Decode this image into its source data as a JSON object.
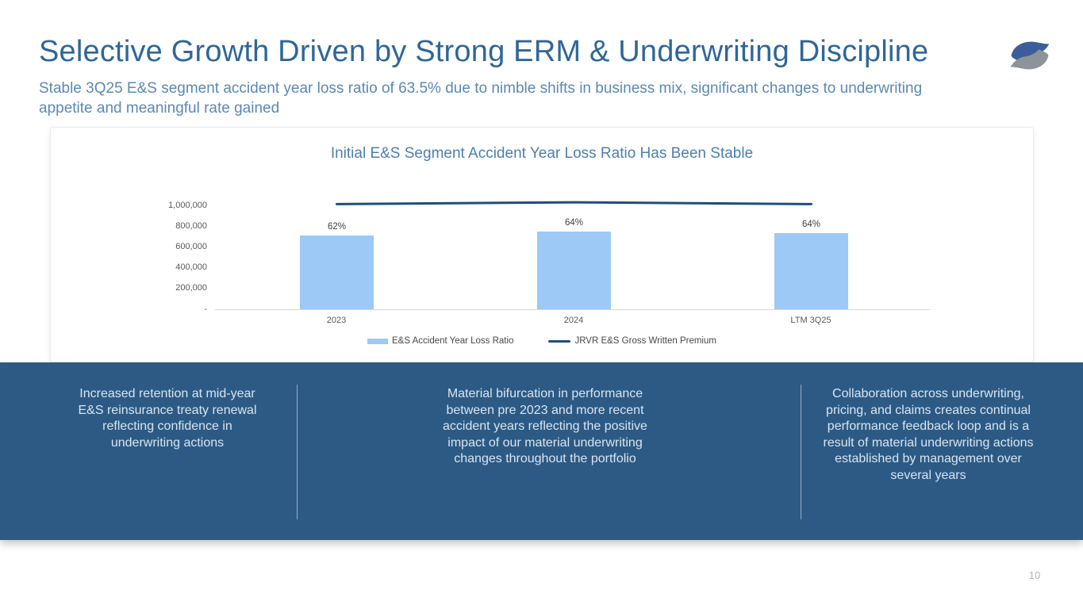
{
  "slide": {
    "title": "Selective Growth Driven by Strong ERM & Underwriting Discipline",
    "subtitle": "Stable 3Q25 E&S segment accident year loss ratio of 63.5% due to nimble shifts in business mix, significant changes to underwriting appetite and meaningful rate gained",
    "page_number": "10",
    "logo": {
      "name": "two-wave-swirl-logo",
      "top_wave_color": "#3b5d9a",
      "bottom_wave_color": "#8e9399"
    }
  },
  "chart_data": {
    "type": "bar",
    "title": "Initial E&S Segment Accident Year Loss Ratio Has Been Stable",
    "categories": [
      "2023",
      "2024",
      "LTM 3Q25"
    ],
    "series": [
      {
        "name": "E&S Accident Year Loss Ratio",
        "render": "bar",
        "color": "#9cc9f5",
        "labels": [
          "62%",
          "64%",
          "64%"
        ],
        "values_pct": [
          62,
          64,
          64
        ],
        "values": [
          710000,
          748000,
          736000
        ]
      },
      {
        "name": "JRVR E&S Gross Written Premium",
        "render": "line",
        "color": "#1f4e79",
        "values": [
          1012000,
          1030000,
          1012000
        ]
      }
    ],
    "xlabel": "",
    "ylabel": "",
    "ylim": [
      0,
      1000000
    ],
    "y_ticks": [
      "1,000,000",
      "800,000",
      "600,000",
      "400,000",
      "200,000",
      "-"
    ],
    "grid": false,
    "legend_position": "bottom"
  },
  "callouts": [
    "Increased retention at mid-year E&S reinsurance treaty renewal reflecting confidence in underwriting actions",
    "Material bifurcation in performance between pre 2023 and more recent accident years reflecting the positive impact of our material underwriting changes throughout the portfolio",
    "Collaboration across underwriting, pricing, and claims creates continual performance feedback loop and is a result of material underwriting actions established by management over several years"
  ]
}
